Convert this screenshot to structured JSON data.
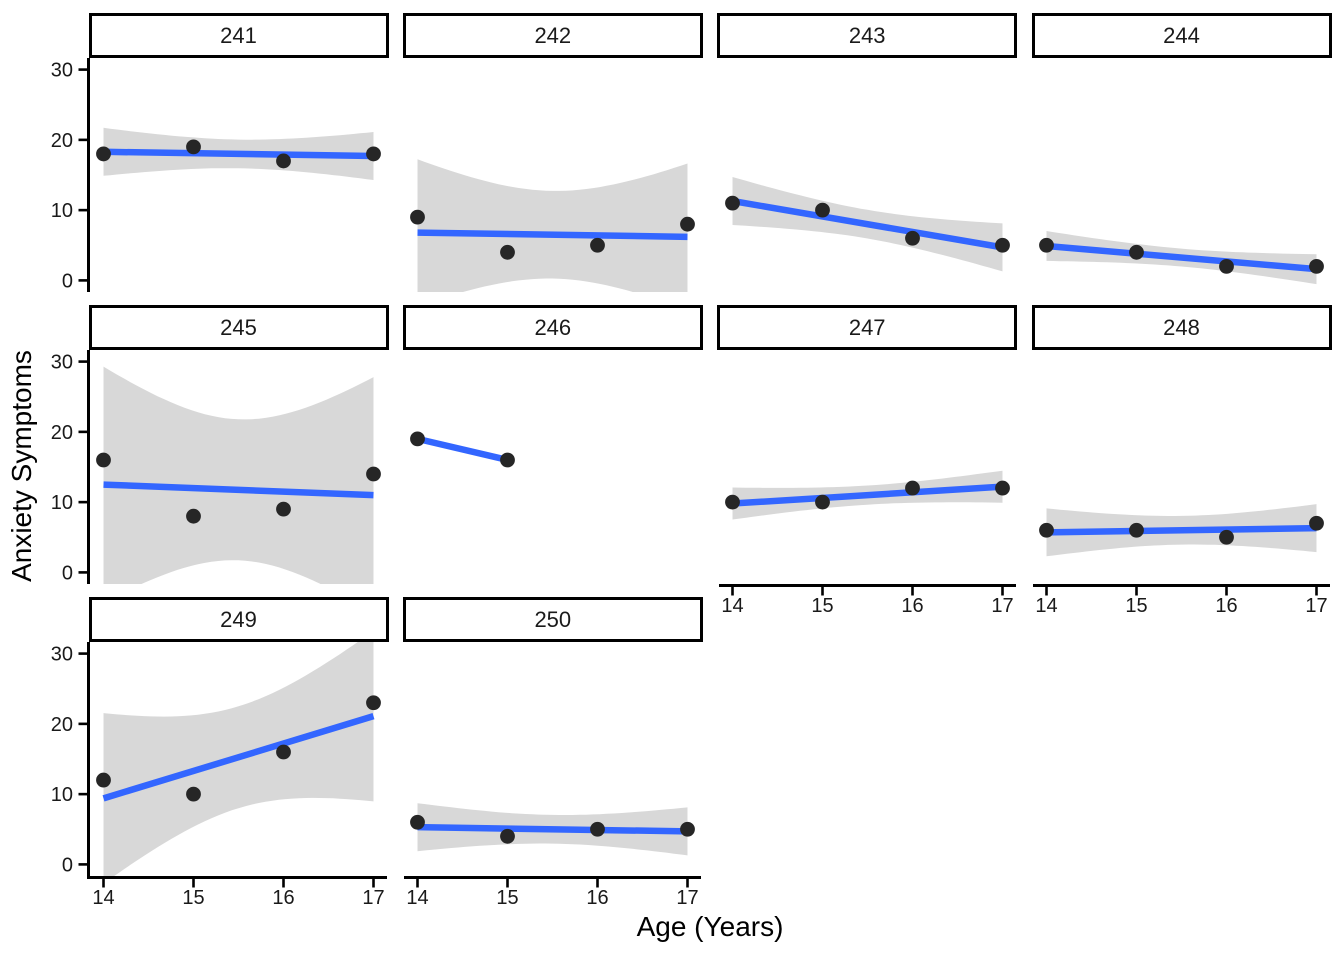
{
  "chart_data": {
    "type": "scatter",
    "title": "",
    "xlabel": "Age (Years)",
    "ylabel": "Anxiety Symptoms",
    "x_ticks": [
      14,
      15,
      16,
      17
    ],
    "y_ticks": [
      0,
      10,
      20,
      30
    ],
    "xlim": [
      13.85,
      17.15
    ],
    "ylim": [
      -1.65,
      31.65
    ],
    "grid": false,
    "legend": false,
    "facet_layout": {
      "ncol": 4,
      "nrow": 3
    },
    "smoother": {
      "method": "lm",
      "ci_level": 0.95
    },
    "colors": {
      "line": "#3366FF",
      "ribbon": "#D8D8D8",
      "point": "#262626",
      "axis": "#000000",
      "strip_border": "#000000",
      "strip_bg": "#FFFFFF"
    },
    "facets": [
      {
        "label": "241",
        "x": [
          14,
          15,
          16,
          17
        ],
        "y": [
          18,
          19,
          17,
          18
        ]
      },
      {
        "label": "242",
        "x": [
          14,
          15,
          16,
          17
        ],
        "y": [
          9,
          4,
          5,
          8
        ]
      },
      {
        "label": "243",
        "x": [
          14,
          15,
          16,
          17
        ],
        "y": [
          11,
          10,
          6,
          5
        ]
      },
      {
        "label": "244",
        "x": [
          14,
          15,
          16,
          17
        ],
        "y": [
          5,
          4,
          2,
          2
        ]
      },
      {
        "label": "245",
        "x": [
          14,
          15,
          16,
          17
        ],
        "y": [
          16,
          8,
          9,
          14
        ]
      },
      {
        "label": "246",
        "x": [
          14,
          15
        ],
        "y": [
          19,
          16
        ]
      },
      {
        "label": "247",
        "x": [
          14,
          15,
          16,
          17
        ],
        "y": [
          10,
          10,
          12,
          12
        ]
      },
      {
        "label": "248",
        "x": [
          14,
          15,
          16,
          17
        ],
        "y": [
          6,
          6,
          5,
          7
        ]
      },
      {
        "label": "249",
        "x": [
          14,
          15,
          16,
          17
        ],
        "y": [
          12,
          10,
          16,
          23
        ]
      },
      {
        "label": "250",
        "x": [
          14,
          15,
          16,
          17
        ],
        "y": [
          6,
          4,
          5,
          5
        ]
      }
    ]
  }
}
